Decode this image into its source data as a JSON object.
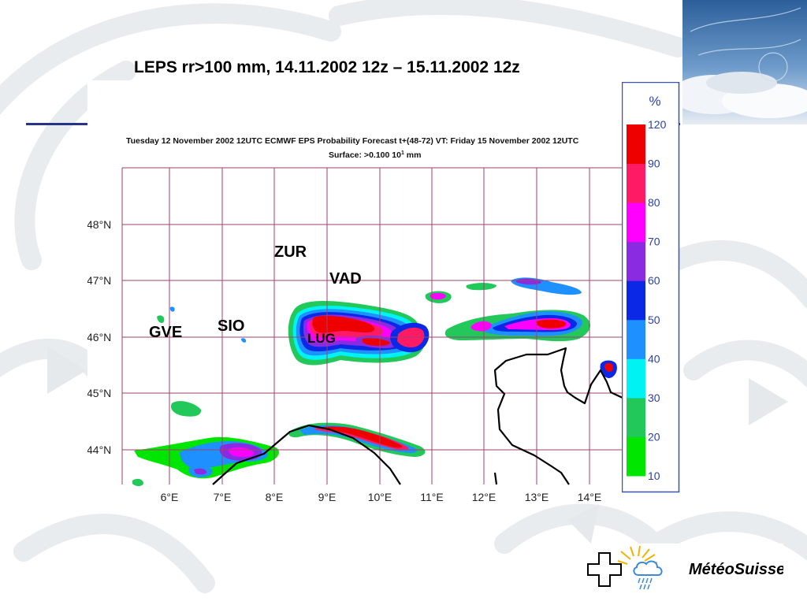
{
  "slide": {
    "title": "LEPS rr>100 mm, 14.11.2002 12z – 15.11.2002 12z"
  },
  "map": {
    "header_line1": "Tuesday 12 November 2002 12UTC ECMWF  EPS Probability Forecast t+(48-72) VT: Friday 15 November 2002 12UTC",
    "header_line2": "Surface:  >0.100 10",
    "header_exp": "1",
    "header_unit": " mm",
    "lat_labels": [
      "48°N",
      "47°N",
      "46°N",
      "45°N",
      "44°N"
    ],
    "lon_labels": [
      "6°E",
      "7°E",
      "8°E",
      "9°E",
      "10°E",
      "11°E",
      "12°E",
      "13°E",
      "14°E"
    ]
  },
  "stations": {
    "zur": "ZUR",
    "vad": "VAD",
    "sio": "SIO",
    "gve": "GVE",
    "lug": "LUG"
  },
  "legend": {
    "unit": "%",
    "bands": [
      {
        "from": 10,
        "to": 20,
        "color": "#00e600"
      },
      {
        "from": 20,
        "to": 30,
        "color": "#22c95a"
      },
      {
        "from": 30,
        "to": 40,
        "color": "#00f2f2"
      },
      {
        "from": 40,
        "to": 50,
        "color": "#1e90ff"
      },
      {
        "from": 50,
        "to": 60,
        "color": "#0a28e6"
      },
      {
        "from": 60,
        "to": 70,
        "color": "#8a2be2"
      },
      {
        "from": 70,
        "to": 80,
        "color": "#ff00ff"
      },
      {
        "from": 80,
        "to": 90,
        "color": "#ff1a66"
      },
      {
        "from": 90,
        "to": 120,
        "color": "#ee0000"
      }
    ],
    "tick_labels": [
      "10",
      "20",
      "30",
      "40",
      "50",
      "60",
      "70",
      "80",
      "90",
      "120"
    ]
  },
  "chart_data": {
    "type": "heatmap",
    "title": "Tuesday 12 November 2002 12UTC ECMWF  EPS Probability Forecast t+(48-72) VT: Friday 15 November 2002 12UTC",
    "subtitle": "Surface:  >0.100 10^1 mm",
    "x_ticks": [
      "6°E",
      "7°E",
      "8°E",
      "9°E",
      "10°E",
      "11°E",
      "12°E",
      "13°E",
      "14°E"
    ],
    "y_ticks": [
      "48°N",
      "47°N",
      "46°N",
      "45°N",
      "44°N"
    ],
    "color_scale_unit": "%",
    "color_scale_levels": [
      10,
      20,
      30,
      40,
      50,
      60,
      70,
      80,
      90,
      120
    ],
    "grid": true
  },
  "logo": {
    "text": "MétéoSuisse",
    "brand_color": "#000000"
  }
}
